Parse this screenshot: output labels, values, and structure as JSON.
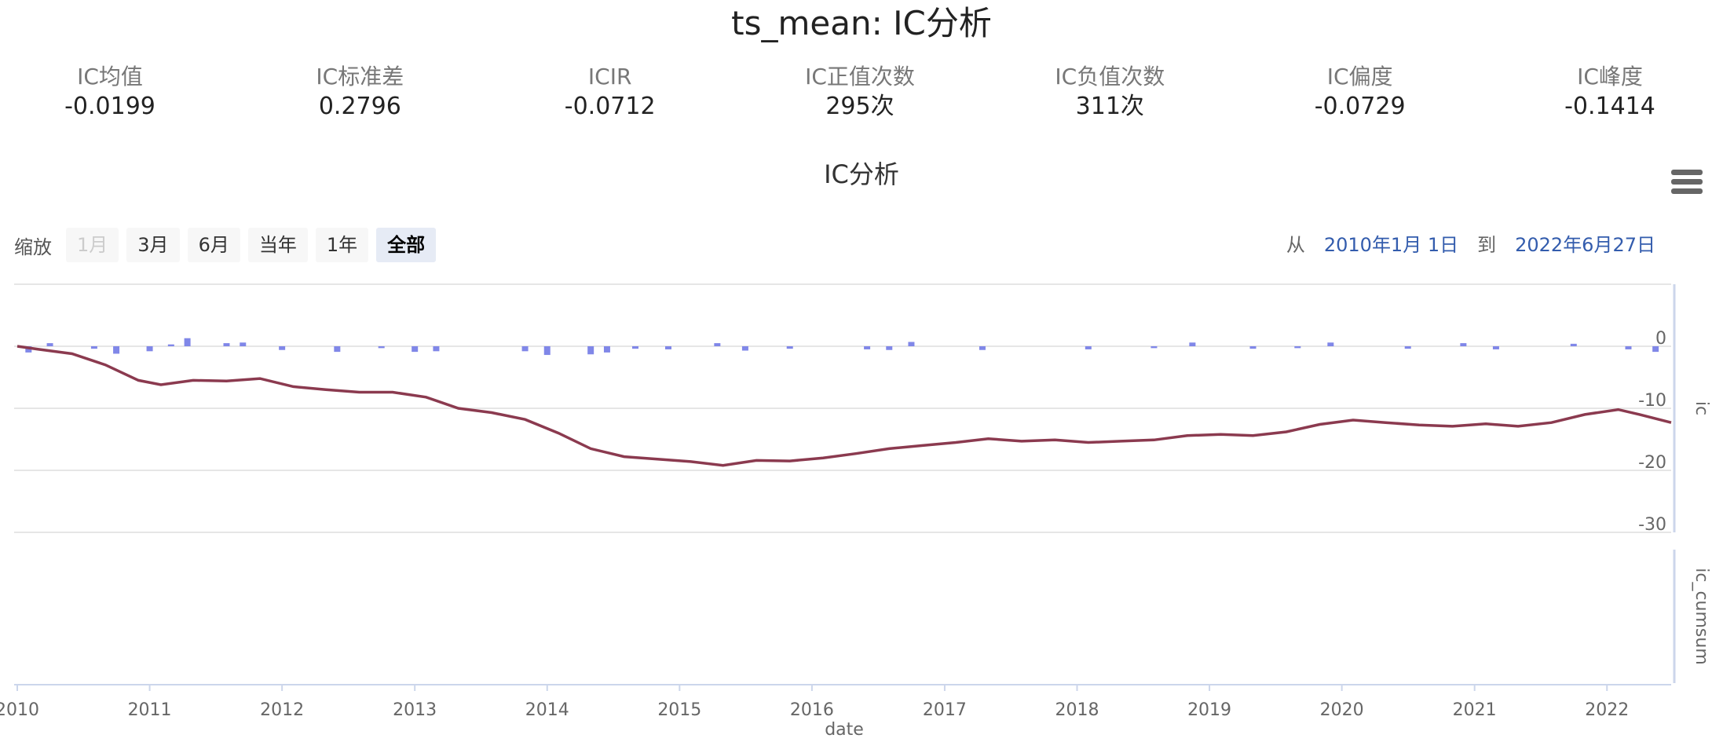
{
  "page_title": "ts_mean: IC分析",
  "stats": [
    {
      "label": "IC均值",
      "value": "-0.0199"
    },
    {
      "label": "IC标准差",
      "value": "0.2796"
    },
    {
      "label": "ICIR",
      "value": "-0.0712"
    },
    {
      "label": "IC正值次数",
      "value": "295次"
    },
    {
      "label": "IC负值次数",
      "value": "311次"
    },
    {
      "label": "IC偏度",
      "value": "-0.0729"
    },
    {
      "label": "IC峰度",
      "value": "-0.1414"
    }
  ],
  "toolbar": {
    "zoom_label": "缩放",
    "zoom_buttons": [
      "1月",
      "3月",
      "6月",
      "当年",
      "1年",
      "全部"
    ],
    "zoom_disabled": "1月",
    "zoom_selected": "全部",
    "range_from_label": "从",
    "range_from": "2010年1月 1日",
    "range_to_label": "到",
    "range_to": "2022年6月27日"
  },
  "colors": {
    "ic_bars": "#8087e8",
    "ic_cumsum_line": "#8b3a4f",
    "range_date": "#335cad",
    "selected_button_bg": "#e6ebf5"
  },
  "chart_data": {
    "type": "line",
    "title": "IC分析",
    "xlabel": "date",
    "x_ticks": [
      "2010",
      "2011",
      "2012",
      "2013",
      "2014",
      "2015",
      "2016",
      "2017",
      "2018",
      "2019",
      "2020",
      "2021",
      "2022"
    ],
    "xlim": [
      "2010-01-01",
      "2022-06-27"
    ],
    "panels": [
      {
        "name": "ic",
        "ylabel": "ic",
        "ylim": [
          -30,
          10
        ],
        "yticks": [
          0,
          -10,
          -20,
          -30
        ]
      },
      {
        "name": "ic_cumsum",
        "ylabel": "ic_cumsum",
        "yticks": []
      }
    ],
    "series": [
      {
        "name": "ic_cumsum",
        "type": "line",
        "color": "#8b3a4f",
        "points": [
          [
            "2010-01-01",
            0
          ],
          [
            "2010-03-01",
            -0.5
          ],
          [
            "2010-06-01",
            -1.2
          ],
          [
            "2010-09-01",
            -3.0
          ],
          [
            "2010-12-01",
            -5.5
          ],
          [
            "2011-02-01",
            -6.2
          ],
          [
            "2011-05-01",
            -5.5
          ],
          [
            "2011-08-01",
            -5.6
          ],
          [
            "2011-11-01",
            -5.2
          ],
          [
            "2012-02-01",
            -6.5
          ],
          [
            "2012-05-01",
            -7.0
          ],
          [
            "2012-08-01",
            -7.4
          ],
          [
            "2012-11-01",
            -7.4
          ],
          [
            "2013-02-01",
            -8.2
          ],
          [
            "2013-05-01",
            -10.0
          ],
          [
            "2013-08-01",
            -10.7
          ],
          [
            "2013-11-01",
            -11.8
          ],
          [
            "2014-02-01",
            -14.0
          ],
          [
            "2014-05-01",
            -16.5
          ],
          [
            "2014-08-01",
            -17.8
          ],
          [
            "2014-11-01",
            -18.2
          ],
          [
            "2015-02-01",
            -18.6
          ],
          [
            "2015-05-01",
            -19.2
          ],
          [
            "2015-08-01",
            -18.4
          ],
          [
            "2015-11-01",
            -18.5
          ],
          [
            "2016-02-01",
            -18.0
          ],
          [
            "2016-05-01",
            -17.3
          ],
          [
            "2016-08-01",
            -16.5
          ],
          [
            "2016-11-01",
            -16.0
          ],
          [
            "2017-02-01",
            -15.5
          ],
          [
            "2017-05-01",
            -14.9
          ],
          [
            "2017-08-01",
            -15.3
          ],
          [
            "2017-11-01",
            -15.1
          ],
          [
            "2018-02-01",
            -15.5
          ],
          [
            "2018-05-01",
            -15.3
          ],
          [
            "2018-08-01",
            -15.1
          ],
          [
            "2018-11-01",
            -14.4
          ],
          [
            "2019-02-01",
            -14.2
          ],
          [
            "2019-05-01",
            -14.4
          ],
          [
            "2019-08-01",
            -13.8
          ],
          [
            "2019-11-01",
            -12.6
          ],
          [
            "2020-02-01",
            -11.9
          ],
          [
            "2020-05-01",
            -12.3
          ],
          [
            "2020-08-01",
            -12.7
          ],
          [
            "2020-11-01",
            -12.9
          ],
          [
            "2021-02-01",
            -12.5
          ],
          [
            "2021-05-01",
            -12.9
          ],
          [
            "2021-08-01",
            -12.3
          ],
          [
            "2021-11-01",
            -11.0
          ],
          [
            "2022-02-01",
            -10.2
          ],
          [
            "2022-04-01",
            -11.0
          ],
          [
            "2022-06-27",
            -12.3
          ]
        ]
      },
      {
        "name": "ic",
        "type": "column",
        "color": "#8087e8",
        "points": [
          [
            "2010-02-01",
            -1.0
          ],
          [
            "2010-04-01",
            0.5
          ],
          [
            "2010-08-01",
            -0.4
          ],
          [
            "2010-10-01",
            -1.2
          ],
          [
            "2011-01-01",
            -0.8
          ],
          [
            "2011-03-01",
            0.3
          ],
          [
            "2011-04-15",
            1.3
          ],
          [
            "2011-08-01",
            0.5
          ],
          [
            "2011-09-15",
            0.6
          ],
          [
            "2012-01-01",
            -0.6
          ],
          [
            "2012-06-01",
            -0.9
          ],
          [
            "2012-10-01",
            -0.3
          ],
          [
            "2013-01-01",
            -0.9
          ],
          [
            "2013-03-01",
            -0.8
          ],
          [
            "2013-11-01",
            -0.8
          ],
          [
            "2014-01-01",
            -1.4
          ],
          [
            "2014-05-01",
            -1.3
          ],
          [
            "2014-06-15",
            -1.0
          ],
          [
            "2014-09-01",
            -0.4
          ],
          [
            "2014-12-01",
            -0.5
          ],
          [
            "2015-04-15",
            0.5
          ],
          [
            "2015-07-01",
            -0.7
          ],
          [
            "2015-11-01",
            -0.4
          ],
          [
            "2016-06-01",
            -0.5
          ],
          [
            "2016-08-01",
            -0.6
          ],
          [
            "2016-10-01",
            0.7
          ],
          [
            "2017-04-15",
            -0.6
          ],
          [
            "2018-02-01",
            -0.5
          ],
          [
            "2018-08-01",
            -0.3
          ],
          [
            "2018-11-15",
            0.6
          ],
          [
            "2019-05-01",
            -0.4
          ],
          [
            "2019-09-01",
            -0.3
          ],
          [
            "2019-12-01",
            0.6
          ],
          [
            "2020-07-01",
            -0.4
          ],
          [
            "2020-12-01",
            0.5
          ],
          [
            "2021-03-01",
            -0.5
          ],
          [
            "2021-10-01",
            0.4
          ],
          [
            "2022-03-01",
            -0.5
          ],
          [
            "2022-05-15",
            -0.9
          ]
        ]
      }
    ]
  }
}
